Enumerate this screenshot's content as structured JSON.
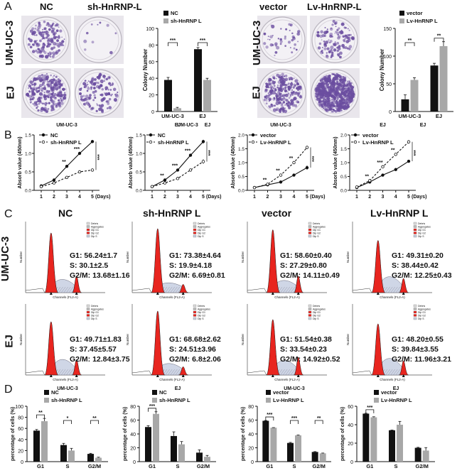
{
  "panels": {
    "A": "A",
    "B": "B",
    "C": "C",
    "D": "D"
  },
  "panelA": {
    "left_headers": [
      "NC",
      "sh-HnRNP-L"
    ],
    "right_headers": [
      "vector",
      "Lv-HnRNP-L"
    ],
    "row_labels": [
      "UM-UC-3",
      "EJ"
    ]
  },
  "panelC": {
    "column_headers": [
      "NC",
      "sh-HnRNP L",
      "vector",
      "Lv-HnRNP L"
    ],
    "row_labels": [
      "UM-UC-3",
      "EJ"
    ],
    "xlabel": "Channels (FL2-A)",
    "ylabel": "Number",
    "legend": [
      "Debris",
      "Aggregates",
      "Dip G1",
      "Dip G2",
      "Dip S"
    ],
    "stats": [
      [
        "G1: 56.24±1.7",
        "S: 30.1±2.5",
        "G2/M: 13.68±1.16"
      ],
      [
        "G1: 73.38±4.64",
        "S: 19.9±4.18",
        "G2/M: 6.69±0.81"
      ],
      [
        "G1: 58.60±0.40",
        "S: 27.29±0.80",
        "G2/M: 14.11±0.49"
      ],
      [
        "G1: 49.31±0.20",
        "S: 38.44±0.42",
        "G2/M: 12.25±0.43"
      ],
      [
        "G1: 49.71±1.83",
        "S: 37.45±5.57",
        "G2/M: 12.84±3.75"
      ],
      [
        "G1: 68.68±2.62",
        "S: 24.51±3.96",
        "G2/M: 6.8±2.06"
      ],
      [
        "G1: 51.54±0.38",
        "S: 33.54±0.23",
        "G2/M: 14.92±0.52"
      ],
      [
        "G1: 48.20±0.55",
        "S: 39.84±3.55",
        "G2/M: 11.96±3.21"
      ]
    ]
  },
  "colors": {
    "black": "#111111",
    "gray": "#a8a8a8",
    "red": "#e8251f",
    "purple": "#6b4ea0"
  },
  "chart_data": [
    {
      "type": "bar",
      "id": "A-left",
      "ylabel": "Colony Number",
      "categories": [
        "UM-UC-3",
        "EJ"
      ],
      "ylim": [
        0,
        100
      ],
      "yticks": [
        0,
        20,
        40,
        60,
        80,
        100
      ],
      "series": [
        {
          "name": "NC",
          "values": [
            38,
            75
          ],
          "err": [
            3,
            2
          ]
        },
        {
          "name": "sh-HnRNP L",
          "values": [
            4,
            38
          ],
          "err": [
            1,
            2
          ]
        }
      ],
      "sig": [
        "***",
        "***"
      ]
    },
    {
      "type": "bar",
      "id": "A-right",
      "ylabel": "Colony Number",
      "categories": [
        "UM-UC-3",
        "EJ"
      ],
      "ylim": [
        0,
        150
      ],
      "yticks": [
        0,
        50,
        100,
        150
      ],
      "series": [
        {
          "name": "vector",
          "values": [
            22,
            83
          ],
          "err": [
            8,
            4
          ]
        },
        {
          "name": "Lv-HnRNP L",
          "values": [
            57,
            118
          ],
          "err": [
            4,
            8
          ]
        }
      ],
      "sig": [
        "**",
        "**"
      ]
    },
    {
      "type": "line",
      "id": "B1",
      "title": "UM-UC-3",
      "ylabel": "Absorb value (450nm)",
      "x": [
        1,
        2,
        3,
        4,
        5
      ],
      "xlabel_suffix": "(Days)",
      "ylim": [
        0,
        1.5
      ],
      "yticks": [
        0.0,
        0.5,
        1.0,
        1.5
      ],
      "series": [
        {
          "name": "NC",
          "values": [
            0.12,
            0.28,
            0.65,
            1.0,
            1.32
          ],
          "err": [
            0.01,
            0.02,
            0.03,
            0.04,
            0.04
          ]
        },
        {
          "name": "sh-HnRNP L",
          "values": [
            0.1,
            0.2,
            0.35,
            0.5,
            0.55
          ],
          "err": [
            0.01,
            0.02,
            0.03,
            0.03,
            0.03
          ]
        }
      ],
      "sig": [
        "**",
        "***",
        "***"
      ]
    },
    {
      "type": "line",
      "id": "B2",
      "title": "EJ",
      "ylabel": "Absorb value (450nm)",
      "x": [
        1,
        2,
        3,
        4,
        5
      ],
      "xlabel_suffix": "(Days)",
      "ylim": [
        0,
        1.5
      ],
      "yticks": [
        0.0,
        0.5,
        1.0,
        1.5
      ],
      "series": [
        {
          "name": "NC",
          "values": [
            0.1,
            0.28,
            0.55,
            0.95,
            1.32
          ],
          "err": [
            0.01,
            0.02,
            0.03,
            0.04,
            0.05
          ]
        },
        {
          "name": "sh-HnRNP L",
          "values": [
            0.1,
            0.2,
            0.32,
            0.55,
            0.78
          ],
          "err": [
            0.01,
            0.02,
            0.03,
            0.04,
            0.06
          ]
        }
      ],
      "sig": [
        "**",
        "***",
        "***",
        "***"
      ]
    },
    {
      "type": "line",
      "id": "B3",
      "title": "UM-UC-3",
      "ylabel": "Absorb value (450nm)",
      "x": [
        1,
        2,
        3,
        4,
        5
      ],
      "xlabel_suffix": "(Days)",
      "ylim": [
        0,
        2.0
      ],
      "yticks": [
        0.0,
        0.5,
        1.0,
        1.5,
        2.0
      ],
      "series": [
        {
          "name": "vector",
          "values": [
            0.1,
            0.2,
            0.3,
            0.55,
            0.82
          ],
          "err": [
            0.01,
            0.02,
            0.03,
            0.05,
            0.08
          ]
        },
        {
          "name": "Lv-HnRNP L",
          "values": [
            0.1,
            0.22,
            0.55,
            1.0,
            1.55
          ],
          "err": [
            0.01,
            0.02,
            0.04,
            0.05,
            0.06
          ]
        }
      ],
      "sig": [
        "**",
        "**",
        "**",
        "***"
      ]
    },
    {
      "type": "line",
      "id": "B4",
      "title": "EJ",
      "ylabel": "Absorb value (450nm)",
      "x": [
        1,
        2,
        3,
        4,
        5
      ],
      "xlabel_suffix": "(Days)",
      "ylim": [
        0,
        2.0
      ],
      "yticks": [
        0.0,
        0.5,
        1.0,
        1.5,
        2.0
      ],
      "series": [
        {
          "name": "vector",
          "values": [
            0.1,
            0.3,
            0.55,
            0.75,
            1.05
          ],
          "err": [
            0.01,
            0.02,
            0.03,
            0.04,
            0.05
          ]
        },
        {
          "name": "Lv-HnRNP L",
          "values": [
            0.12,
            0.35,
            0.85,
            1.3,
            1.75
          ],
          "err": [
            0.01,
            0.02,
            0.04,
            0.05,
            0.06
          ]
        }
      ],
      "sig": [
        "**",
        "***",
        "**",
        "***"
      ]
    },
    {
      "type": "bar",
      "id": "D1",
      "title": "UM-UC-3",
      "ylabel": "percentage of cells (%)",
      "categories": [
        "G1",
        "S",
        "G2/M"
      ],
      "ylim": [
        0,
        100
      ],
      "yticks": [
        0,
        20,
        40,
        60,
        80,
        100
      ],
      "series": [
        {
          "name": "NC",
          "values": [
            56,
            30,
            14
          ],
          "err": [
            2,
            3,
            1
          ]
        },
        {
          "name": "sh-HnRNP L",
          "values": [
            73,
            20,
            7
          ],
          "err": [
            5,
            4,
            1
          ]
        }
      ],
      "sig": [
        "**",
        "*",
        "**"
      ]
    },
    {
      "type": "bar",
      "id": "D2",
      "title": "EJ",
      "ylabel": "percentage of cells (%)",
      "categories": [
        "G1",
        "S",
        "G2/M"
      ],
      "ylim": [
        0,
        80
      ],
      "yticks": [
        0,
        20,
        40,
        60,
        80
      ],
      "series": [
        {
          "name": "NC",
          "values": [
            50,
            37,
            13
          ],
          "err": [
            2,
            6,
            4
          ]
        },
        {
          "name": "sh-HnRNP L",
          "values": [
            69,
            25,
            7
          ],
          "err": [
            3,
            4,
            2
          ]
        }
      ],
      "sig": [
        "***",
        "",
        ""
      ]
    },
    {
      "type": "bar",
      "id": "D3",
      "title": "UM-UC-3",
      "ylabel": "percentage of cells (%)",
      "categories": [
        "G1",
        "S",
        "G2/M"
      ],
      "ylim": [
        0,
        80
      ],
      "yticks": [
        0,
        20,
        40,
        60,
        80
      ],
      "series": [
        {
          "name": "vector",
          "values": [
            59,
            27,
            14
          ],
          "err": [
            0.4,
            0.8,
            0.5
          ]
        },
        {
          "name": "Lv-HnRNP L",
          "values": [
            49,
            38,
            12
          ],
          "err": [
            0.2,
            0.4,
            0.4
          ]
        }
      ],
      "sig": [
        "***",
        "***",
        "**"
      ]
    },
    {
      "type": "bar",
      "id": "D4",
      "title": "EJ",
      "ylabel": "percentage of cells (%)",
      "categories": [
        "G1",
        "S",
        "G2/M"
      ],
      "ylim": [
        0,
        60
      ],
      "yticks": [
        0,
        20,
        40,
        60
      ],
      "series": [
        {
          "name": "vector",
          "values": [
            52,
            34,
            15
          ],
          "err": [
            0.4,
            0.2,
            0.5
          ]
        },
        {
          "name": "Lv-HnRNP L",
          "values": [
            48,
            40,
            12
          ],
          "err": [
            0.6,
            3.6,
            3.2
          ]
        }
      ],
      "sig": [
        "***",
        "",
        ""
      ]
    }
  ]
}
